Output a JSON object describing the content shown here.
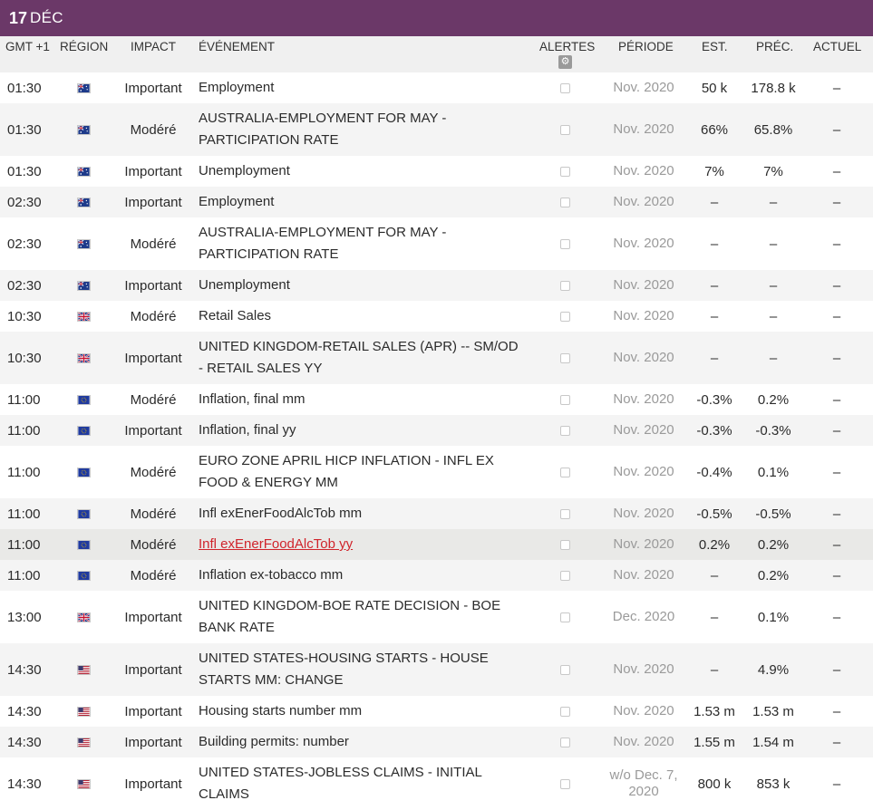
{
  "date": {
    "day": "17",
    "month": "DÉC"
  },
  "headers": {
    "time": "GMT +1",
    "region": "RÉGION",
    "impact": "IMPACT",
    "event": "ÉVÉNEMENT",
    "alerts": "ALERTES",
    "period": "PÉRIODE",
    "est": "EST.",
    "prev": "PRÉC.",
    "actual": "ACTUEL"
  },
  "alerts_settings_icon": "gear-icon",
  "colors": {
    "brand": "#6b3868",
    "link": "#d0242b",
    "period": "#9a9a9a"
  },
  "events": [
    {
      "time": "01:30",
      "region": "au",
      "impact": "Important",
      "event": "Employment",
      "period": "Nov. 2020",
      "est": "50 k",
      "prev": "178.8 k",
      "actual": "–"
    },
    {
      "time": "01:30",
      "region": "au",
      "impact": "Modéré",
      "event": "AUSTRALIA-EMPLOYMENT FOR MAY - PARTICIPATION RATE",
      "period": "Nov. 2020",
      "est": "66%",
      "prev": "65.8%",
      "actual": "–"
    },
    {
      "time": "01:30",
      "region": "au",
      "impact": "Important",
      "event": "Unemployment",
      "period": "Nov. 2020",
      "est": "7%",
      "prev": "7%",
      "actual": "–"
    },
    {
      "time": "02:30",
      "region": "au",
      "impact": "Important",
      "event": "Employment",
      "period": "Nov. 2020",
      "est": "–",
      "prev": "–",
      "actual": "–"
    },
    {
      "time": "02:30",
      "region": "au",
      "impact": "Modéré",
      "event": "AUSTRALIA-EMPLOYMENT FOR MAY - PARTICIPATION RATE",
      "period": "Nov. 2020",
      "est": "–",
      "prev": "–",
      "actual": "–"
    },
    {
      "time": "02:30",
      "region": "au",
      "impact": "Important",
      "event": "Unemployment",
      "period": "Nov. 2020",
      "est": "–",
      "prev": "–",
      "actual": "–"
    },
    {
      "time": "10:30",
      "region": "gb",
      "impact": "Modéré",
      "event": "Retail Sales",
      "period": "Nov. 2020",
      "est": "–",
      "prev": "–",
      "actual": "–"
    },
    {
      "time": "10:30",
      "region": "gb",
      "impact": "Important",
      "event": "UNITED KINGDOM-RETAIL SALES (APR) -- SM/OD - RETAIL SALES YY",
      "period": "Nov. 2020",
      "est": "–",
      "prev": "–",
      "actual": "–"
    },
    {
      "time": "11:00",
      "region": "eu",
      "impact": "Modéré",
      "event": "Inflation, final mm",
      "period": "Nov. 2020",
      "est": "-0.3%",
      "prev": "0.2%",
      "actual": "–"
    },
    {
      "time": "11:00",
      "region": "eu",
      "impact": "Important",
      "event": "Inflation, final yy",
      "period": "Nov. 2020",
      "est": "-0.3%",
      "prev": "-0.3%",
      "actual": "–"
    },
    {
      "time": "11:00",
      "region": "eu",
      "impact": "Modéré",
      "event": "EURO ZONE APRIL HICP INFLATION - INFL EX FOOD & ENERGY MM",
      "period": "Nov. 2020",
      "est": "-0.4%",
      "prev": "0.1%",
      "actual": "–"
    },
    {
      "time": "11:00",
      "region": "eu",
      "impact": "Modéré",
      "event": "Infl exEnerFoodAlcTob mm",
      "period": "Nov. 2020",
      "est": "-0.5%",
      "prev": "-0.5%",
      "actual": "–"
    },
    {
      "time": "11:00",
      "region": "eu",
      "impact": "Modéré",
      "event": "Infl exEnerFoodAlcTob yy",
      "period": "Nov. 2020",
      "est": "0.2%",
      "prev": "0.2%",
      "actual": "–",
      "link": true
    },
    {
      "time": "11:00",
      "region": "eu",
      "impact": "Modéré",
      "event": "Inflation ex-tobacco mm",
      "period": "Nov. 2020",
      "est": "–",
      "prev": "0.2%",
      "actual": "–"
    },
    {
      "time": "13:00",
      "region": "gb",
      "impact": "Important",
      "event": "UNITED KINGDOM-BOE RATE DECISION - BOE BANK RATE",
      "period": "Dec. 2020",
      "est": "–",
      "prev": "0.1%",
      "actual": "–"
    },
    {
      "time": "14:30",
      "region": "us",
      "impact": "Important",
      "event": "UNITED STATES-HOUSING STARTS - HOUSE STARTS MM: CHANGE",
      "period": "Nov. 2020",
      "est": "–",
      "prev": "4.9%",
      "actual": "–"
    },
    {
      "time": "14:30",
      "region": "us",
      "impact": "Important",
      "event": "Housing starts number mm",
      "period": "Nov. 2020",
      "est": "1.53 m",
      "prev": "1.53 m",
      "actual": "–"
    },
    {
      "time": "14:30",
      "region": "us",
      "impact": "Important",
      "event": "Building permits: number",
      "period": "Nov. 2020",
      "est": "1.55 m",
      "prev": "1.54 m",
      "actual": "–"
    },
    {
      "time": "14:30",
      "region": "us",
      "impact": "Important",
      "event": "UNITED STATES-JOBLESS CLAIMS - INITIAL CLAIMS",
      "period": "w/o Dec. 7, 2020",
      "est": "800 k",
      "prev": "853 k",
      "actual": "–"
    }
  ]
}
